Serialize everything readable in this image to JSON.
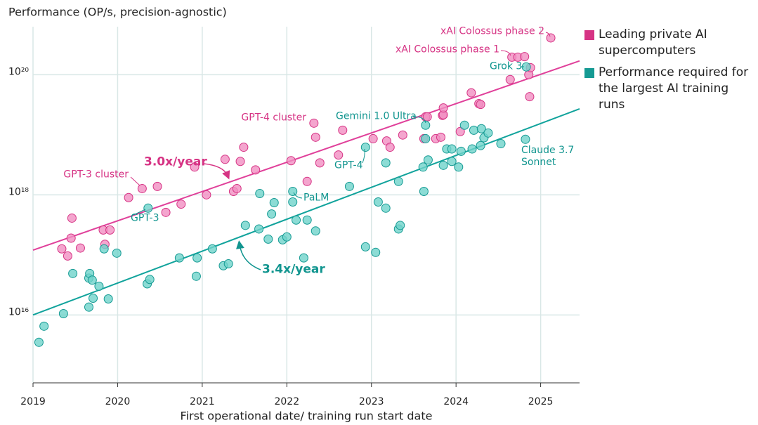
{
  "chart_data": {
    "type": "scatter",
    "title": "Performance (OP/s, precision-agnostic)",
    "x_label": "First operational date/ training run start date",
    "ylog": true,
    "grid": true,
    "xlim": [
      2019,
      2025.46
    ],
    "xticks": [
      2019,
      2020,
      2021,
      2022,
      2023,
      2024,
      2025
    ],
    "ylim": [
      740000000000000.0,
      6.3e+20
    ],
    "yticks": [
      {
        "value": 1e+16,
        "label": "10¹⁶"
      },
      {
        "value": 1e+18,
        "label": "10¹⁸"
      },
      {
        "value": 1e+20,
        "label": "10²⁰"
      }
    ],
    "series": [
      {
        "name": "Leading private AI supercomputers",
        "color": "#d63384",
        "fill": "#f18fc2",
        "x": [
          2019.46,
          2019.34,
          2019.41,
          2019.45,
          2019.56,
          2019.83,
          2019.85,
          2019.91,
          2020.13,
          2020.29,
          2020.47,
          2020.57,
          2020.75,
          2020.91,
          2021.05,
          2021.27,
          2021.37,
          2021.41,
          2021.45,
          2021.49,
          2021.63,
          2022.05,
          2022.24,
          2022.32,
          2022.34,
          2022.39,
          2022.61,
          2022.66,
          2023.02,
          2023.18,
          2023.22,
          2023.37,
          2023.62,
          2023.64,
          2023.66,
          2023.76,
          2023.82,
          2023.84,
          2023.85,
          2023.85,
          2024.05,
          2024.18,
          2024.27,
          2024.29,
          2024.64,
          2024.66,
          2024.73,
          2024.81,
          2024.86,
          2024.88,
          2024.87,
          2025.12
        ],
        "values": [
          4.1e+17,
          1.26e+17,
          9.6e+16,
          1.9e+17,
          1.3e+17,
          2.6e+17,
          1.5e+17,
          2.6e+17,
          9e+17,
          1.27e+18,
          1.38e+18,
          5.1e+17,
          7e+17,
          2.9e+18,
          1e+18,
          3.9e+18,
          1.14e+18,
          1.27e+18,
          3.6e+18,
          6.2e+18,
          2.6e+18,
          3.7e+18,
          1.67e+18,
          1.56e+19,
          9.1e+18,
          3.4e+18,
          4.6e+18,
          1.19e+19,
          8.6e+18,
          7.9e+18,
          6.2e+18,
          9.9e+18,
          8.6e+18,
          1.99e+19,
          1.99e+19,
          8.6e+18,
          9.1e+18,
          2.1e+19,
          2.15e+19,
          2.8e+19,
          1.13e+19,
          5e+19,
          3.3e+19,
          3.2e+19,
          8.3e+19,
          1.96e+20,
          1.96e+20,
          2e+20,
          1e+20,
          1.31e+20,
          4.3e+19,
          4.1e+20
        ]
      },
      {
        "name": "Performance required for the largest AI training runs",
        "color": "#159a93",
        "fill": "#6fd3ca",
        "x": [
          2019.07,
          2019.13,
          2019.36,
          2019.47,
          2019.66,
          2019.67,
          2019.7,
          2019.66,
          2019.71,
          2019.78,
          2019.89,
          2019.84,
          2019.99,
          2020.35,
          2020.38,
          2020.36,
          2020.73,
          2020.93,
          2020.94,
          2021.12,
          2021.25,
          2021.31,
          2021.51,
          2021.67,
          2021.68,
          2021.78,
          2021.82,
          2021.85,
          2021.95,
          2022.0,
          2022.07,
          2022.07,
          2022.11,
          2022.24,
          2022.2,
          2022.34,
          2022.74,
          2022.93,
          2022.93,
          2023.05,
          2023.08,
          2023.17,
          2023.17,
          2023.32,
          2023.34,
          2023.32,
          2023.61,
          2023.62,
          2023.64,
          2023.64,
          2023.67,
          2023.85,
          2023.89,
          2023.95,
          2023.95,
          2024.03,
          2024.06,
          2024.1,
          2024.19,
          2024.21,
          2024.3,
          2024.33,
          2024.38,
          2024.29,
          2024.53,
          2024.82,
          2024.83
        ],
        "values": [
          3500000000000000.0,
          6500000000000000.0,
          1.05e+16,
          4.9e+16,
          4.1e+16,
          4.9e+16,
          3.8e+16,
          1.35e+16,
          1.9e+16,
          3e+16,
          1.85e+16,
          1.26e+17,
          1.07e+17,
          3.3e+16,
          3.9e+16,
          6e+17,
          8.9e+16,
          4.4e+16,
          8.9e+16,
          1.26e+17,
          6.6e+16,
          7.1e+16,
          3.1e+17,
          2.7e+17,
          1.05e+18,
          1.83e+17,
          4.8e+17,
          7.4e+17,
          1.78e+17,
          1.99e+17,
          1.14e+18,
          7.6e+17,
          3.8e+17,
          3.8e+17,
          8.9e+16,
          2.5e+17,
          1.38e+18,
          1.36e+17,
          6.2e+18,
          1.1e+17,
          7.6e+17,
          6e+17,
          3.4e+18,
          2.7e+17,
          3.1e+17,
          1.67e+18,
          2.9e+18,
          1.14e+18,
          1.44e+19,
          8.6e+18,
          3.8e+18,
          3.1e+18,
          5.8e+18,
          3.6e+18,
          5.8e+18,
          2.9e+18,
          5.3e+18,
          1.44e+19,
          5.8e+18,
          1.19e+19,
          1.26e+19,
          8.9e+18,
          1.07e+19,
          6.6e+18,
          7.1e+18,
          8.4e+18,
          1.35e+20
        ]
      }
    ],
    "trend_lines": [
      {
        "color": "#e0409a",
        "x": [
          2019,
          2025.46
        ],
        "values": [
          1.2e+17,
          1.7e+20
        ]
      },
      {
        "color": "#11a39c",
        "x": [
          2019,
          2025.46
        ],
        "values": [
          1e+16,
          2.7e+19
        ]
      }
    ],
    "annotations": [
      {
        "text": "GPT-3 cluster",
        "color": "#d63384"
      },
      {
        "text": "GPT-4 cluster",
        "color": "#d63384"
      },
      {
        "text": "xAI Colossus phase 2",
        "color": "#d63384"
      },
      {
        "text": "xAI Colossus phase 1",
        "color": "#d63384"
      },
      {
        "text": "3.0x/year",
        "color": "#d63384"
      },
      {
        "text": "3.4x/year",
        "color": "#11958f"
      },
      {
        "text": "GPT-3",
        "color": "#11958f"
      },
      {
        "text": "PaLM",
        "color": "#11958f"
      },
      {
        "text": "GPT-4",
        "color": "#11958f"
      },
      {
        "text": "Gemini 1.0 Ultra",
        "color": "#11958f"
      },
      {
        "text": "Grok 3",
        "color": "#11958f"
      },
      {
        "text": "Claude 3.7 Sonnet",
        "color": "#11958f"
      }
    ]
  }
}
